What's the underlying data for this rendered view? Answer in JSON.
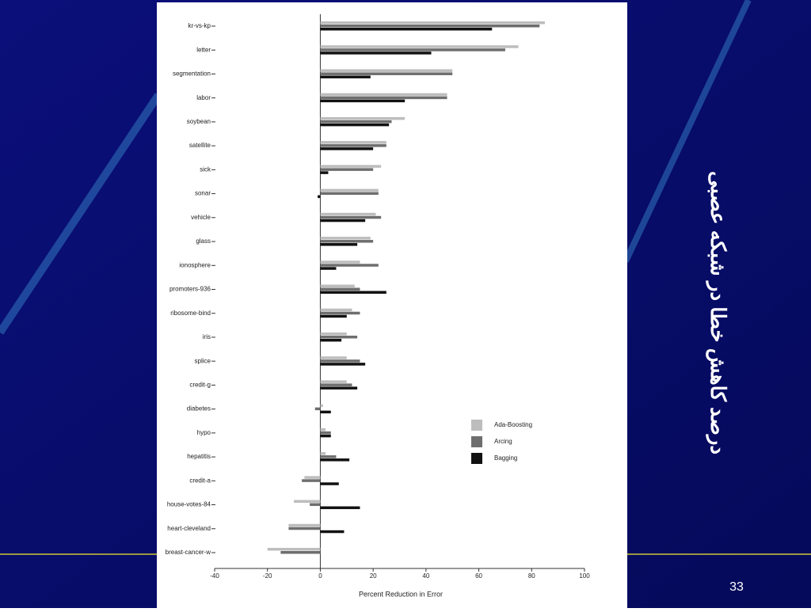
{
  "slide": {
    "title": "درصد کاهش خطا در شبکه عصبی",
    "page_number": "33"
  },
  "chart_data": {
    "type": "bar",
    "orientation": "horizontal",
    "xlabel": "Percent Reduction in Error",
    "categories": [
      "kr-vs-kp",
      "letter",
      "segmentation",
      "labor",
      "soybean",
      "satellite",
      "sick",
      "sonar",
      "vehicle",
      "glass",
      "ionosphere",
      "promoters-936",
      "ribosome-bind",
      "iris",
      "splice",
      "credit-g",
      "diabetes",
      "hypo",
      "hepatitis",
      "credit-a",
      "house-votes-84",
      "heart-cleveland",
      "breast-cancer-w"
    ],
    "series": [
      {
        "name": "Ada-Boosting",
        "color": "#bdbdbd",
        "values": [
          85,
          75,
          50,
          48,
          32,
          25,
          23,
          22,
          21,
          19,
          15,
          13,
          12,
          10,
          10,
          10,
          1,
          2,
          2,
          -6,
          -10,
          -12,
          -20
        ]
      },
      {
        "name": "Arcing",
        "color": "#6e6e6e",
        "values": [
          83,
          70,
          50,
          48,
          27,
          25,
          20,
          22,
          23,
          20,
          22,
          15,
          15,
          14,
          15,
          12,
          -2,
          4,
          6,
          -7,
          -4,
          -12,
          -15
        ]
      },
      {
        "name": "Bagging",
        "color": "#111111",
        "values": [
          65,
          42,
          19,
          32,
          26,
          20,
          3,
          -1,
          17,
          14,
          6,
          25,
          10,
          8,
          17,
          14,
          4,
          4,
          11,
          7,
          15,
          9,
          0
        ]
      }
    ],
    "xlim": [
      -40,
      100
    ],
    "xticks": [
      -40,
      -20,
      0,
      20,
      40,
      60,
      80,
      100
    ],
    "legend": "lower-right"
  }
}
